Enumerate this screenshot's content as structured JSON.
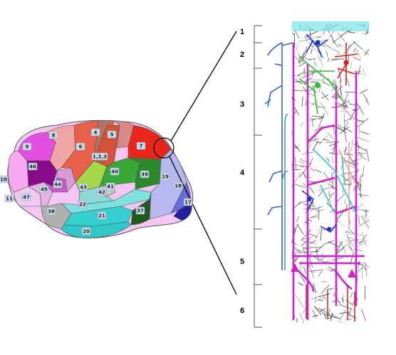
{
  "brain": {
    "areas": [
      {
        "label": "9",
        "color": "#e04fe0"
      },
      {
        "label": "8",
        "color": "#f2a3a3"
      },
      {
        "label": "6",
        "color": "#e8604a"
      },
      {
        "label": "4",
        "color": "#b9715f"
      },
      {
        "label": "5",
        "color": "#d98888"
      },
      {
        "label": "7",
        "color": "#e8261c"
      },
      {
        "label": "1,2,3",
        "color": "#d6503a"
      },
      {
        "label": "46",
        "color": "#8a0b8a"
      },
      {
        "label": "10",
        "color": "#f6a8f0"
      },
      {
        "label": "45",
        "color": "#c85ac8"
      },
      {
        "label": "44",
        "color": "#d99ad9"
      },
      {
        "label": "47",
        "color": "#e5b3e5"
      },
      {
        "label": "11",
        "color": "#f0c8f0"
      },
      {
        "label": "43",
        "color": "#a7d84a"
      },
      {
        "label": "40",
        "color": "#3aa73a"
      },
      {
        "label": "41",
        "color": "#c6c6c6"
      },
      {
        "label": "42",
        "color": "#8fd8d8"
      },
      {
        "label": "39",
        "color": "#2a8a2a"
      },
      {
        "label": "19",
        "color": "#b8b8f0"
      },
      {
        "label": "18",
        "color": "#6a6ad8"
      },
      {
        "label": "17",
        "color": "#2020a0"
      },
      {
        "label": "22",
        "color": "#7fe0e0"
      },
      {
        "label": "38",
        "color": "#b0b0b0"
      },
      {
        "label": "21",
        "color": "#36d0d0"
      },
      {
        "label": "37",
        "color": "#1f5a1f"
      },
      {
        "label": "20",
        "color": "#2ec8c8"
      }
    ]
  },
  "cortex": {
    "layers": [
      "1",
      "2",
      "3",
      "4",
      "5",
      "6"
    ]
  }
}
